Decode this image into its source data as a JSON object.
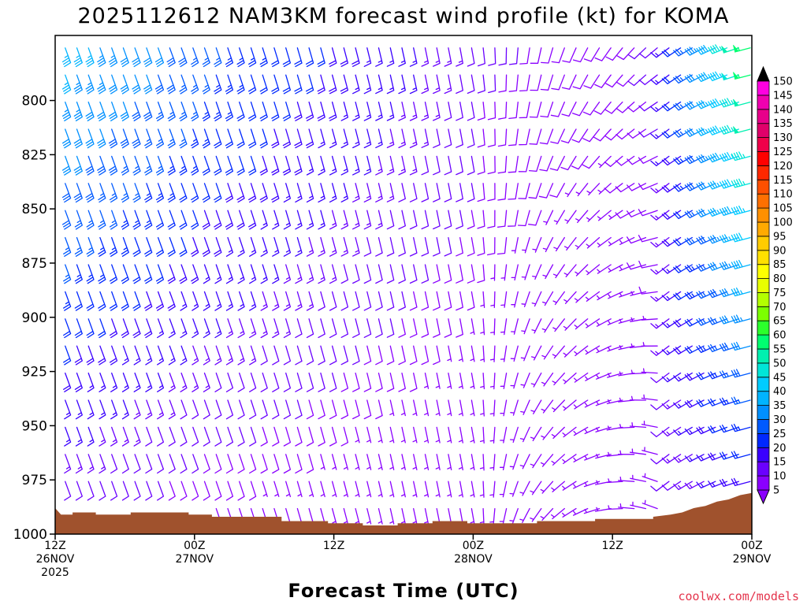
{
  "chart_data": {
    "type": "wind-barb-profile",
    "title": "2025112612 NAM3KM forecast wind profile (kt) for KOMA",
    "xlabel": "Forecast Time (UTC)",
    "credit": "coolwx.com/models",
    "units": "kt",
    "ylim": [
      1000,
      770
    ],
    "xlim_hours": [
      0,
      60
    ],
    "time_step_hours": 1,
    "pressure_step_hpa": 12.5,
    "yticks": [
      {
        "value": 800,
        "label": "800"
      },
      {
        "value": 825,
        "label": "825"
      },
      {
        "value": 850,
        "label": "850"
      },
      {
        "value": 875,
        "label": "875"
      },
      {
        "value": 900,
        "label": "900"
      },
      {
        "value": 925,
        "label": "925"
      },
      {
        "value": 950,
        "label": "950"
      },
      {
        "value": 975,
        "label": "975"
      },
      {
        "value": 1000,
        "label": "1000"
      }
    ],
    "xticks": [
      {
        "hour": 0,
        "lines": [
          "12Z",
          "26NOV",
          "2025"
        ]
      },
      {
        "hour": 12,
        "lines": [
          "00Z",
          "27NOV"
        ]
      },
      {
        "hour": 24,
        "lines": [
          "12Z"
        ]
      },
      {
        "hour": 36,
        "lines": [
          "00Z",
          "28NOV"
        ]
      },
      {
        "hour": 48,
        "lines": [
          "12Z"
        ]
      },
      {
        "hour": 60,
        "lines": [
          "00Z",
          "29NOV"
        ]
      }
    ],
    "surface_pressure": [
      {
        "h": 0,
        "p": 988
      },
      {
        "h": 0.5,
        "p": 991
      },
      {
        "h": 1.5,
        "p": 991
      },
      {
        "h": 1.5,
        "p": 990
      },
      {
        "h": 3.5,
        "p": 990
      },
      {
        "h": 3.5,
        "p": 991
      },
      {
        "h": 6.5,
        "p": 991
      },
      {
        "h": 6.5,
        "p": 990
      },
      {
        "h": 11.5,
        "p": 990
      },
      {
        "h": 11.5,
        "p": 991
      },
      {
        "h": 13.5,
        "p": 991
      },
      {
        "h": 13.5,
        "p": 992
      },
      {
        "h": 19.5,
        "p": 992
      },
      {
        "h": 19.5,
        "p": 994
      },
      {
        "h": 23.5,
        "p": 994
      },
      {
        "h": 23.5,
        "p": 995
      },
      {
        "h": 26.5,
        "p": 995
      },
      {
        "h": 26.5,
        "p": 996
      },
      {
        "h": 29.5,
        "p": 996
      },
      {
        "h": 29.5,
        "p": 995
      },
      {
        "h": 32.5,
        "p": 995
      },
      {
        "h": 32.5,
        "p": 994
      },
      {
        "h": 35.5,
        "p": 994
      },
      {
        "h": 35.5,
        "p": 995
      },
      {
        "h": 41.5,
        "p": 995
      },
      {
        "h": 41.5,
        "p": 994
      },
      {
        "h": 46.5,
        "p": 994
      },
      {
        "h": 46.5,
        "p": 993
      },
      {
        "h": 51.5,
        "p": 993
      },
      {
        "h": 51.5,
        "p": 992
      },
      {
        "h": 53,
        "p": 991
      },
      {
        "h": 54,
        "p": 990
      },
      {
        "h": 55,
        "p": 988
      },
      {
        "h": 56,
        "p": 987
      },
      {
        "h": 57,
        "p": 985
      },
      {
        "h": 58,
        "p": 984
      },
      {
        "h": 59,
        "p": 982
      },
      {
        "h": 60,
        "p": 981
      }
    ],
    "wind_regime_hours": [
      {
        "from_h": 0,
        "to_h": 12,
        "low_speed_kt": 12,
        "high_speed_kt": 37,
        "direction": "SSE"
      },
      {
        "from_h": 12,
        "to_h": 36,
        "low_speed_kt": 8,
        "high_speed_kt": 22,
        "direction": "SSE"
      },
      {
        "from_h": 36,
        "to_h": 52,
        "low_speed_kt": 3,
        "high_speed_kt": 10,
        "direction": "SSE veering W aloft"
      },
      {
        "from_h": 52,
        "to_h": 60,
        "low_speed_kt": 10,
        "high_speed_kt": 48,
        "direction": "SW to WSW"
      }
    ],
    "colorbar": {
      "levels": [
        5,
        10,
        15,
        20,
        25,
        30,
        35,
        40,
        45,
        50,
        55,
        60,
        65,
        70,
        75,
        80,
        85,
        90,
        95,
        100,
        105,
        110,
        115,
        120,
        125,
        130,
        135,
        140,
        145,
        150
      ],
      "colors": [
        "#8a00ff",
        "#6a00ff",
        "#3a00ff",
        "#0028ff",
        "#005aff",
        "#0090ff",
        "#00b4ff",
        "#00ccff",
        "#00e5d8",
        "#00f0b0",
        "#00ff70",
        "#2cff2c",
        "#7cff00",
        "#b4ff00",
        "#e8ff00",
        "#ffff00",
        "#ffe000",
        "#ffcc00",
        "#ffaa00",
        "#ff9000",
        "#ff7000",
        "#ff5000",
        "#ff2800",
        "#ff0000",
        "#f0004a",
        "#e0006a",
        "#e8008a",
        "#f000b0",
        "#ff00e0",
        "#ff00ff"
      ],
      "under_color": "#8a00ff",
      "over_color": "#000000"
    }
  }
}
